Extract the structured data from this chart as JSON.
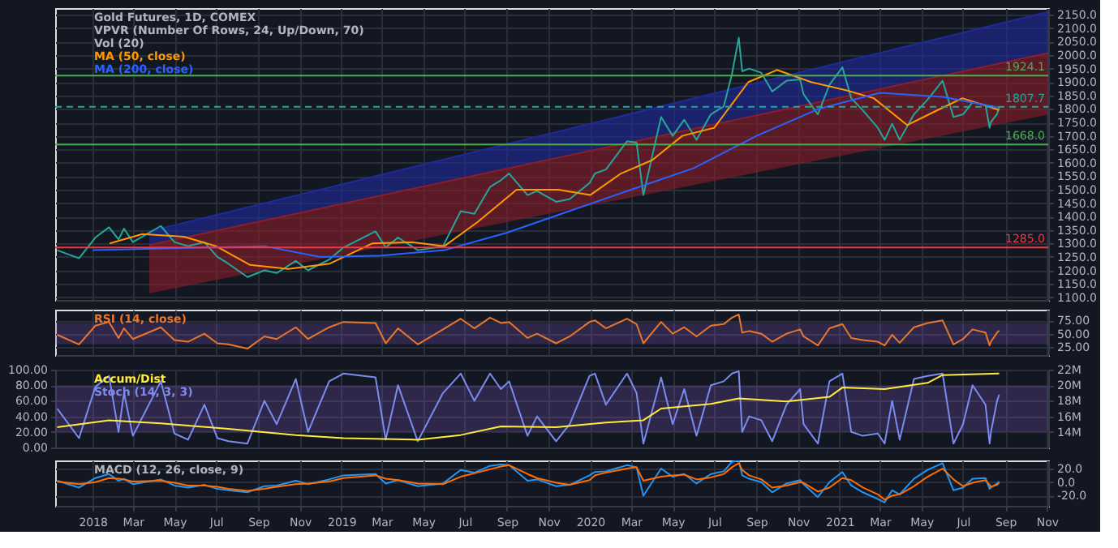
{
  "chart_data": [
    {
      "type": "line",
      "title": "Gold Futures, 1D, COMEX",
      "annotations": [
        "VPVR (Number Of Rows, 24, Up/Down, 70)",
        "Vol (20)"
      ],
      "grid": true,
      "tick_labels": "y",
      "xlim": [
        "2017-11-07",
        "2021-11-03"
      ],
      "xticks": [
        {
          "value": "2018-01-01",
          "label": null
        },
        {
          "value": "2018-03-01",
          "label": null
        },
        {
          "value": "2018-05-01",
          "label": null
        },
        {
          "value": "2018-07-01",
          "label": null
        },
        {
          "value": "2018-09-01",
          "label": null
        },
        {
          "value": "2018-11-01",
          "label": null
        },
        {
          "value": "2019-01-01",
          "label": null
        },
        {
          "value": "2019-03-01",
          "label": null
        },
        {
          "value": "2019-05-01",
          "label": null
        },
        {
          "value": "2019-07-01",
          "label": null
        },
        {
          "value": "2019-09-01",
          "label": null
        },
        {
          "value": "2019-11-01",
          "label": null
        },
        {
          "value": "2020-01-01",
          "label": null
        },
        {
          "value": "2020-03-01",
          "label": null
        },
        {
          "value": "2020-05-01",
          "label": null
        },
        {
          "value": "2020-07-01",
          "label": null
        },
        {
          "value": "2020-09-01",
          "label": null
        },
        {
          "value": "2020-11-01",
          "label": null
        },
        {
          "value": "2021-01-01",
          "label": null
        },
        {
          "value": "2021-03-01",
          "label": null
        },
        {
          "value": "2021-05-01",
          "label": null
        },
        {
          "value": "2021-07-01",
          "label": null
        },
        {
          "value": "2021-09-01",
          "label": null
        },
        {
          "value": "2021-11-01",
          "label": null
        }
      ],
      "ylim": [
        1090,
        2175
      ],
      "yticks": [
        {
          "value": 1100,
          "label": "1100.0"
        },
        {
          "value": 1150,
          "label": "1150.0"
        },
        {
          "value": 1200,
          "label": "1200.0"
        },
        {
          "value": 1250,
          "label": "1250.0"
        },
        {
          "value": 1300,
          "label": "1300.0"
        },
        {
          "value": 1350,
          "label": "1350.0"
        },
        {
          "value": 1400,
          "label": "1400.0"
        },
        {
          "value": 1450,
          "label": "1450.0"
        },
        {
          "value": 1500,
          "label": "1500.0"
        },
        {
          "value": 1550,
          "label": "1550.0"
        },
        {
          "value": 1600,
          "label": "1600.0"
        },
        {
          "value": 1650,
          "label": "1650.0"
        },
        {
          "value": 1700,
          "label": "1700.0"
        },
        {
          "value": 1750,
          "label": "1750.0"
        },
        {
          "value": 1800,
          "label": "1800.0"
        },
        {
          "value": 1850,
          "label": "1850.0"
        },
        {
          "value": 1900,
          "label": "1900.0"
        },
        {
          "value": 1950,
          "label": "1950.0"
        },
        {
          "value": 2000,
          "label": "2000.0"
        },
        {
          "value": 2050,
          "label": "2050.0"
        },
        {
          "value": 2100,
          "label": "2100.0"
        },
        {
          "value": 2150,
          "label": "2150.0"
        }
      ],
      "ref_lines": [
        {
          "axis": "y",
          "value": 1924.1,
          "label": "1924.1",
          "color": "#4caf50"
        },
        {
          "axis": "y",
          "value": 1668.0,
          "label": "1668.0",
          "color": "#4caf50"
        },
        {
          "axis": "y",
          "value": 1285.0,
          "label": "1285.0",
          "color": "#f23645"
        },
        {
          "axis": "y",
          "value": 1807.7,
          "label": "1807.7",
          "color": "#26a69a",
          "line_style": "dashed"
        }
      ],
      "series": [
        {
          "color": "#1f2a9c",
          "x": [
            "2018-03-25",
            "2021-11-03"
          ],
          "values": [
            1345,
            2161
          ],
          "lower": [
            1294,
            2008
          ],
          "upper": [
            1345,
            2161
          ]
        },
        {
          "color": "#8b1e2a",
          "x": [
            "2018-03-25",
            "2021-11-03"
          ],
          "values": [
            1294,
            2008
          ],
          "lower": [
            1115,
            1779
          ],
          "upper": [
            1294,
            2008
          ]
        },
        {
          "color": "#26a69a",
          "x": [
            "2017-11-10",
            "2017-12-12",
            "2018-01-05",
            "2018-01-25",
            "2018-02-08",
            "2018-02-16",
            "2018-03-01",
            "2018-04-11",
            "2018-05-01",
            "2018-05-21",
            "2018-06-14",
            "2018-07-03",
            "2018-07-19",
            "2018-08-16",
            "2018-09-10",
            "2018-09-28",
            "2018-10-26",
            "2018-11-13",
            "2018-12-14",
            "2019-01-04",
            "2019-02-20",
            "2019-03-07",
            "2019-03-25",
            "2019-04-23",
            "2019-05-30",
            "2019-06-25",
            "2019-07-15",
            "2019-08-07",
            "2019-08-23",
            "2019-09-04",
            "2019-10-01",
            "2019-10-15",
            "2019-11-12",
            "2019-12-02",
            "2019-12-31",
            "2020-01-08",
            "2020-01-24",
            "2020-02-24",
            "2020-03-09",
            "2020-03-19",
            "2020-04-14",
            "2020-05-01",
            "2020-05-18",
            "2020-06-05",
            "2020-06-26",
            "2020-07-15",
            "2020-07-27",
            "2020-08-06",
            "2020-08-11",
            "2020-08-21",
            "2020-09-08",
            "2020-09-24",
            "2020-10-15",
            "2020-11-04",
            "2020-11-09",
            "2020-11-30",
            "2020-12-17",
            "2021-01-05",
            "2021-01-18",
            "2021-02-04",
            "2021-02-26",
            "2021-03-08",
            "2021-03-19",
            "2021-03-30",
            "2021-04-20",
            "2021-05-10",
            "2021-06-01",
            "2021-06-17",
            "2021-07-01",
            "2021-07-15",
            "2021-08-03",
            "2021-08-09",
            "2021-08-11",
            "2021-08-20",
            "2021-08-23"
          ],
          "values": [
            1275,
            1245,
            1322,
            1360,
            1315,
            1355,
            1305,
            1365,
            1305,
            1290,
            1305,
            1250,
            1225,
            1175,
            1200,
            1190,
            1235,
            1200,
            1240,
            1285,
            1345,
            1285,
            1322,
            1275,
            1290,
            1420,
            1410,
            1510,
            1535,
            1560,
            1480,
            1495,
            1455,
            1465,
            1525,
            1560,
            1575,
            1680,
            1675,
            1480,
            1770,
            1700,
            1760,
            1685,
            1780,
            1810,
            1930,
            2065,
            1940,
            1950,
            1935,
            1865,
            1905,
            1910,
            1855,
            1780,
            1890,
            1955,
            1840,
            1795,
            1730,
            1685,
            1745,
            1685,
            1780,
            1835,
            1905,
            1770,
            1780,
            1825,
            1815,
            1730,
            1752,
            1781,
            1807.7
          ]
        },
        {
          "name": "MA (50, close)",
          "color": "#ff9800",
          "x": [
            "2018-01-26",
            "2018-03-15",
            "2018-05-15",
            "2018-07-01",
            "2018-08-20",
            "2018-10-15",
            "2018-12-15",
            "2019-02-15",
            "2019-04-15",
            "2019-06-01",
            "2019-07-20",
            "2019-09-15",
            "2019-11-15",
            "2020-01-01",
            "2020-02-15",
            "2020-04-01",
            "2020-05-15",
            "2020-07-01",
            "2020-08-20",
            "2020-10-01",
            "2020-11-20",
            "2021-01-10",
            "2021-02-20",
            "2021-04-10",
            "2021-05-20",
            "2021-06-30",
            "2021-08-23"
          ],
          "values": [
            1300,
            1335,
            1325,
            1290,
            1220,
            1205,
            1225,
            1300,
            1305,
            1290,
            1380,
            1500,
            1500,
            1480,
            1560,
            1610,
            1700,
            1730,
            1900,
            1945,
            1900,
            1870,
            1840,
            1740,
            1790,
            1840,
            1796
          ]
        },
        {
          "name": "MA (200, close)",
          "color": "#2962ff",
          "x": [
            "2018-01-01",
            "2018-09-10",
            "2018-12-01",
            "2019-03-01",
            "2019-06-01",
            "2019-09-01",
            "2019-12-01",
            "2020-03-01",
            "2020-06-01",
            "2020-09-01",
            "2020-12-01",
            "2021-03-01",
            "2021-06-01",
            "2021-08-23"
          ],
          "values": [
            1275,
            1290,
            1250,
            1255,
            1275,
            1340,
            1420,
            1500,
            1580,
            1700,
            1800,
            1860,
            1845,
            1805
          ]
        }
      ]
    },
    {
      "type": "line",
      "grid": true,
      "tick_labels": "y",
      "xlim": [
        "2017-11-07",
        "2021-11-03"
      ],
      "xticks": [
        {
          "value": "2018-01-01",
          "label": null
        },
        {
          "value": "2018-03-01",
          "label": null
        },
        {
          "value": "2018-05-01",
          "label": null
        },
        {
          "value": "2018-07-01",
          "label": null
        },
        {
          "value": "2018-09-01",
          "label": null
        },
        {
          "value": "2018-11-01",
          "label": null
        },
        {
          "value": "2019-01-01",
          "label": null
        },
        {
          "value": "2019-03-01",
          "label": null
        },
        {
          "value": "2019-05-01",
          "label": null
        },
        {
          "value": "2019-07-01",
          "label": null
        },
        {
          "value": "2019-09-01",
          "label": null
        },
        {
          "value": "2019-11-01",
          "label": null
        },
        {
          "value": "2020-01-01",
          "label": null
        },
        {
          "value": "2020-03-01",
          "label": null
        },
        {
          "value": "2020-05-01",
          "label": null
        },
        {
          "value": "2020-07-01",
          "label": null
        },
        {
          "value": "2020-09-01",
          "label": null
        },
        {
          "value": "2020-11-01",
          "label": null
        },
        {
          "value": "2021-01-01",
          "label": null
        },
        {
          "value": "2021-03-01",
          "label": null
        },
        {
          "value": "2021-05-01",
          "label": null
        },
        {
          "value": "2021-07-01",
          "label": null
        },
        {
          "value": "2021-09-01",
          "label": null
        },
        {
          "value": "2021-11-01",
          "label": null
        }
      ],
      "ylim": [
        10,
        95
      ],
      "yticks": [
        {
          "value": 25,
          "label": "25.00"
        },
        {
          "value": 50,
          "label": "50.00"
        },
        {
          "value": 75,
          "label": "75.00"
        }
      ],
      "bands": [
        {
          "axis": "y",
          "from": 30,
          "to": 70,
          "color": "#7e57c2"
        }
      ],
      "x": [
        "2017-11-10",
        "2017-12-12",
        "2018-01-05",
        "2018-01-25",
        "2018-02-08",
        "2018-02-16",
        "2018-03-01",
        "2018-04-11",
        "2018-05-01",
        "2018-05-21",
        "2018-06-14",
        "2018-07-03",
        "2018-07-19",
        "2018-08-16",
        "2018-09-10",
        "2018-09-28",
        "2018-10-26",
        "2018-11-13",
        "2018-12-14",
        "2019-01-04",
        "2019-02-20",
        "2019-03-07",
        "2019-03-25",
        "2019-04-23",
        "2019-05-30",
        "2019-06-25",
        "2019-07-15",
        "2019-08-07",
        "2019-08-23",
        "2019-09-04",
        "2019-10-01",
        "2019-10-15",
        "2019-11-12",
        "2019-12-02",
        "2019-12-31",
        "2020-01-08",
        "2020-01-24",
        "2020-02-24",
        "2020-03-09",
        "2020-03-19",
        "2020-04-14",
        "2020-05-01",
        "2020-05-18",
        "2020-06-05",
        "2020-06-26",
        "2020-07-15",
        "2020-07-27",
        "2020-08-06",
        "2020-08-11",
        "2020-08-21",
        "2020-09-08",
        "2020-09-24",
        "2020-10-15",
        "2020-11-04",
        "2020-11-09",
        "2020-11-30",
        "2020-12-17",
        "2021-01-05",
        "2021-01-18",
        "2021-02-04",
        "2021-02-26",
        "2021-03-08",
        "2021-03-19",
        "2021-03-30",
        "2021-04-20",
        "2021-05-10",
        "2021-06-01",
        "2021-06-17",
        "2021-07-01",
        "2021-07-15",
        "2021-08-03",
        "2021-08-09",
        "2021-08-11",
        "2021-08-20",
        "2021-08-23"
      ],
      "series": [
        {
          "name": "RSI (14, close)",
          "color": "#e8762d",
          "values": [
            48,
            30,
            65,
            72,
            42,
            60,
            40,
            62,
            38,
            35,
            50,
            32,
            30,
            22,
            45,
            40,
            62,
            40,
            62,
            72,
            70,
            32,
            60,
            30,
            58,
            78,
            60,
            80,
            70,
            72,
            42,
            50,
            32,
            45,
            72,
            75,
            60,
            78,
            68,
            32,
            72,
            50,
            62,
            45,
            65,
            68,
            80,
            86,
            52,
            55,
            50,
            35,
            50,
            58,
            45,
            28,
            60,
            68,
            42,
            38,
            35,
            28,
            48,
            33,
            62,
            70,
            75,
            30,
            40,
            58,
            52,
            28,
            35,
            52,
            56
          ]
        }
      ]
    },
    {
      "type": "line",
      "grid": true,
      "tick_labels": "y",
      "xlim": [
        "2017-11-07",
        "2021-11-03"
      ],
      "xticks": [
        {
          "value": "2018-01-01",
          "label": null
        },
        {
          "value": "2018-03-01",
          "label": null
        },
        {
          "value": "2018-05-01",
          "label": null
        },
        {
          "value": "2018-07-01",
          "label": null
        },
        {
          "value": "2018-09-01",
          "label": null
        },
        {
          "value": "2018-11-01",
          "label": null
        },
        {
          "value": "2019-01-01",
          "label": null
        },
        {
          "value": "2019-03-01",
          "label": null
        },
        {
          "value": "2019-05-01",
          "label": null
        },
        {
          "value": "2019-07-01",
          "label": null
        },
        {
          "value": "2019-09-01",
          "label": null
        },
        {
          "value": "2019-11-01",
          "label": null
        },
        {
          "value": "2020-01-01",
          "label": null
        },
        {
          "value": "2020-03-01",
          "label": null
        },
        {
          "value": "2020-05-01",
          "label": null
        },
        {
          "value": "2020-07-01",
          "label": null
        },
        {
          "value": "2020-09-01",
          "label": null
        },
        {
          "value": "2020-11-01",
          "label": null
        },
        {
          "value": "2021-01-01",
          "label": null
        },
        {
          "value": "2021-03-01",
          "label": null
        },
        {
          "value": "2021-05-01",
          "label": null
        },
        {
          "value": "2021-07-01",
          "label": null
        },
        {
          "value": "2021-09-01",
          "label": null
        },
        {
          "value": "2021-11-01",
          "label": null
        }
      ],
      "ylim": [
        0,
        100
      ],
      "yticks": [
        {
          "value": 0,
          "label": "0.00"
        },
        {
          "value": 20,
          "label": "20.00"
        },
        {
          "value": 40,
          "label": "40.00"
        },
        {
          "value": 60,
          "label": "60.00"
        },
        {
          "value": 80,
          "label": "80.00"
        },
        {
          "value": 100,
          "label": "100.00"
        }
      ],
      "y2lim": [
        12000000,
        22000000
      ],
      "y2ticks": [
        {
          "value": 14000000,
          "label": "14M"
        },
        {
          "value": 16000000,
          "label": "16M"
        },
        {
          "value": 18000000,
          "label": "18M"
        },
        {
          "value": 20000000,
          "label": "20M"
        },
        {
          "value": 22000000,
          "label": "22M"
        }
      ],
      "bands": [
        {
          "axis": "y",
          "from": 20,
          "to": 80,
          "color": "#7e57c2"
        }
      ],
      "x": [
        "2017-11-10",
        "2017-12-12",
        "2018-01-05",
        "2018-01-25",
        "2018-02-08",
        "2018-02-16",
        "2018-03-01",
        "2018-04-11",
        "2018-05-01",
        "2018-05-21",
        "2018-06-14",
        "2018-07-03",
        "2018-07-19",
        "2018-08-16",
        "2018-09-10",
        "2018-09-28",
        "2018-10-26",
        "2018-11-13",
        "2018-12-14",
        "2019-01-04",
        "2019-02-20",
        "2019-03-07",
        "2019-03-25",
        "2019-04-23",
        "2019-05-30",
        "2019-06-25",
        "2019-07-15",
        "2019-08-07",
        "2019-08-23",
        "2019-09-04",
        "2019-10-01",
        "2019-10-15",
        "2019-11-12",
        "2019-12-02",
        "2019-12-31",
        "2020-01-08",
        "2020-01-24",
        "2020-02-24",
        "2020-03-09",
        "2020-03-19",
        "2020-04-14",
        "2020-05-01",
        "2020-05-18",
        "2020-06-05",
        "2020-06-26",
        "2020-07-15",
        "2020-07-27",
        "2020-08-06",
        "2020-08-11",
        "2020-08-21",
        "2020-09-08",
        "2020-09-24",
        "2020-10-15",
        "2020-11-04",
        "2020-11-09",
        "2020-11-30",
        "2020-12-17",
        "2021-01-05",
        "2021-01-18",
        "2021-02-04",
        "2021-02-26",
        "2021-03-08",
        "2021-03-19",
        "2021-03-30",
        "2021-04-20",
        "2021-05-10",
        "2021-06-01",
        "2021-06-17",
        "2021-07-01",
        "2021-07-15",
        "2021-08-03",
        "2021-08-09",
        "2021-08-11",
        "2021-08-20",
        "2021-08-23"
      ],
      "series": [
        {
          "name": "Accum/Dist",
          "color": "#ffeb3b",
          "axis": "y2",
          "x": [
            "2017-11-10",
            "2018-01-25",
            "2018-04-11",
            "2018-07-19",
            "2018-10-26",
            "2019-01-04",
            "2019-04-23",
            "2019-06-25",
            "2019-08-23",
            "2019-11-12",
            "2020-01-24",
            "2020-03-19",
            "2020-04-14",
            "2020-06-26",
            "2020-08-06",
            "2020-10-15",
            "2020-12-17",
            "2021-01-05",
            "2021-03-08",
            "2021-05-10",
            "2021-06-01",
            "2021-08-23"
          ],
          "values": [
            14600000,
            15500000,
            15100000,
            14400000,
            13600000,
            13200000,
            13000000,
            13600000,
            14700000,
            14600000,
            15200000,
            15500000,
            17000000,
            17600000,
            18300000,
            17900000,
            18500000,
            19700000,
            19500000,
            20300000,
            21300000,
            21500000
          ]
        },
        {
          "name": "Stoch (14, 3, 3)",
          "color": "#7b8cf0",
          "values": [
            50,
            12,
            78,
            92,
            20,
            70,
            15,
            85,
            18,
            10,
            55,
            12,
            8,
            5,
            60,
            30,
            88,
            20,
            85,
            95,
            90,
            10,
            80,
            8,
            70,
            95,
            60,
            95,
            75,
            85,
            15,
            40,
            8,
            30,
            92,
            95,
            55,
            95,
            70,
            5,
            90,
            30,
            75,
            15,
            80,
            85,
            95,
            98,
            20,
            40,
            35,
            8,
            55,
            75,
            30,
            5,
            85,
            95,
            20,
            15,
            18,
            5,
            60,
            10,
            88,
            92,
            95,
            5,
            30,
            80,
            55,
            5,
            20,
            60,
            68
          ]
        }
      ]
    },
    {
      "type": "line",
      "title": "MACD (12, 26, close, 9)",
      "grid": true,
      "xlim": [
        "2017-11-07",
        "2021-11-03"
      ],
      "xticks": [
        {
          "value": "2018-01-01",
          "label": "2018"
        },
        {
          "value": "2018-03-01",
          "label": "Mar"
        },
        {
          "value": "2018-05-01",
          "label": "May"
        },
        {
          "value": "2018-07-01",
          "label": "Jul"
        },
        {
          "value": "2018-09-01",
          "label": "Sep"
        },
        {
          "value": "2018-11-01",
          "label": "Nov"
        },
        {
          "value": "2019-01-01",
          "label": "2019"
        },
        {
          "value": "2019-03-01",
          "label": "Mar"
        },
        {
          "value": "2019-05-01",
          "label": "May"
        },
        {
          "value": "2019-07-01",
          "label": "Jul"
        },
        {
          "value": "2019-09-01",
          "label": "Sep"
        },
        {
          "value": "2019-11-01",
          "label": "Nov"
        },
        {
          "value": "2020-01-01",
          "label": "2020"
        },
        {
          "value": "2020-03-01",
          "label": "Mar"
        },
        {
          "value": "2020-05-01",
          "label": "May"
        },
        {
          "value": "2020-07-01",
          "label": "Jul"
        },
        {
          "value": "2020-09-01",
          "label": "Sep"
        },
        {
          "value": "2020-11-01",
          "label": "Nov"
        },
        {
          "value": "2021-01-01",
          "label": "2021"
        },
        {
          "value": "2021-03-01",
          "label": "Mar"
        },
        {
          "value": "2021-05-01",
          "label": "May"
        },
        {
          "value": "2021-07-01",
          "label": "Jul"
        },
        {
          "value": "2021-09-01",
          "label": "Sep"
        },
        {
          "value": "2021-11-01",
          "label": "Nov"
        }
      ],
      "ylim": [
        -35,
        32
      ],
      "yticks": [
        {
          "value": -20,
          "label": "-20.0"
        },
        {
          "value": 0,
          "label": "0.0"
        },
        {
          "value": 20,
          "label": "20.0"
        }
      ],
      "x": [
        "2017-11-10",
        "2017-12-12",
        "2018-01-05",
        "2018-01-25",
        "2018-02-08",
        "2018-02-16",
        "2018-03-01",
        "2018-04-11",
        "2018-05-01",
        "2018-05-21",
        "2018-06-14",
        "2018-07-03",
        "2018-07-19",
        "2018-08-16",
        "2018-09-10",
        "2018-09-28",
        "2018-10-26",
        "2018-11-13",
        "2018-12-14",
        "2019-01-04",
        "2019-02-20",
        "2019-03-07",
        "2019-03-25",
        "2019-04-23",
        "2019-05-30",
        "2019-06-25",
        "2019-07-15",
        "2019-08-07",
        "2019-08-23",
        "2019-09-04",
        "2019-10-01",
        "2019-10-15",
        "2019-11-12",
        "2019-12-02",
        "2019-12-31",
        "2020-01-08",
        "2020-01-24",
        "2020-02-24",
        "2020-03-09",
        "2020-03-19",
        "2020-04-14",
        "2020-05-01",
        "2020-05-18",
        "2020-06-05",
        "2020-06-26",
        "2020-07-15",
        "2020-07-27",
        "2020-08-06",
        "2020-08-11",
        "2020-08-21",
        "2020-09-08",
        "2020-09-24",
        "2020-10-15",
        "2020-11-04",
        "2020-11-09",
        "2020-11-30",
        "2020-12-17",
        "2021-01-05",
        "2021-01-18",
        "2021-02-04",
        "2021-02-26",
        "2021-03-08",
        "2021-03-19",
        "2021-03-30",
        "2021-04-20",
        "2021-05-10",
        "2021-06-01",
        "2021-06-17",
        "2021-07-01",
        "2021-07-15",
        "2021-08-03",
        "2021-08-09",
        "2021-08-11",
        "2021-08-20",
        "2021-08-23"
      ],
      "series": [
        {
          "color": "#2196f3",
          "values": [
            2,
            -8,
            6,
            12,
            2,
            5,
            -3,
            4,
            -5,
            -8,
            -4,
            -10,
            -12,
            -15,
            -6,
            -5,
            2,
            -3,
            4,
            10,
            12,
            -2,
            3,
            -6,
            -2,
            18,
            14,
            24,
            26,
            25,
            2,
            4,
            -6,
            -4,
            10,
            15,
            16,
            25,
            22,
            -20,
            20,
            8,
            12,
            -2,
            12,
            16,
            30,
            32,
            10,
            5,
            0,
            -15,
            -2,
            3,
            -3,
            -22,
            0,
            15,
            -5,
            -15,
            -25,
            -30,
            -12,
            -18,
            5,
            18,
            28,
            -12,
            -8,
            5,
            6,
            -10,
            -8,
            -2,
            1
          ]
        },
        {
          "color": "#ff6d00",
          "values": [
            1,
            -3,
            0,
            6,
            5,
            4,
            1,
            2,
            -1,
            -5,
            -5,
            -7,
            -10,
            -13,
            -10,
            -7,
            -3,
            -2,
            1,
            6,
            10,
            5,
            3,
            -2,
            -3,
            8,
            13,
            19,
            23,
            25,
            12,
            6,
            -1,
            -4,
            3,
            10,
            14,
            20,
            22,
            2,
            8,
            10,
            11,
            4,
            7,
            12,
            22,
            28,
            18,
            10,
            4,
            -8,
            -5,
            0,
            -1,
            -14,
            -8,
            6,
            3,
            -8,
            -18,
            -26,
            -20,
            -18,
            -6,
            8,
            20,
            4,
            -6,
            -1,
            3,
            -4,
            -7,
            -4,
            -1
          ]
        }
      ]
    }
  ]
}
